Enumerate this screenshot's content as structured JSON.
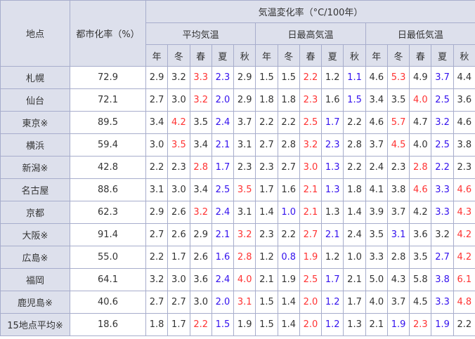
{
  "header": {
    "location": "地点",
    "urbanization": "都市化率（%）",
    "rate_title": "気温変化率（°C/100年）",
    "groups": [
      "平均気温",
      "日最高気温",
      "日最低気温"
    ],
    "seasons": [
      "年",
      "冬",
      "春",
      "夏",
      "秋"
    ]
  },
  "colors": {
    "red": "#ff3333",
    "blue": "#3311ee",
    "header_bg": "#dde0ec",
    "border": "#a7adcc"
  },
  "rows": [
    {
      "name": "札幌",
      "urban": "72.9",
      "values": [
        "2.9",
        "3.2",
        "3.3",
        "2.3",
        "2.9",
        "1.5",
        "1.5",
        "2.2",
        "1.2",
        "1.1",
        "4.6",
        "5.3",
        "4.9",
        "3.7",
        "4.4"
      ],
      "highlight": [
        "",
        "",
        "r",
        "b",
        "",
        "",
        "",
        "r",
        "",
        "b",
        "",
        "r",
        "",
        "b",
        ""
      ]
    },
    {
      "name": "仙台",
      "urban": "72.1",
      "values": [
        "2.7",
        "3.0",
        "3.2",
        "2.0",
        "2.9",
        "1.8",
        "1.8",
        "2.3",
        "1.6",
        "1.5",
        "3.4",
        "3.5",
        "4.0",
        "2.5",
        "3.6"
      ],
      "highlight": [
        "",
        "",
        "r",
        "b",
        "",
        "",
        "",
        "r",
        "",
        "b",
        "",
        "",
        "r",
        "b",
        ""
      ]
    },
    {
      "name": "東京※",
      "urban": "89.5",
      "values": [
        "3.4",
        "4.2",
        "3.5",
        "2.4",
        "3.7",
        "2.2",
        "2.2",
        "2.5",
        "1.7",
        "2.2",
        "4.6",
        "5.7",
        "4.7",
        "3.2",
        "4.6"
      ],
      "highlight": [
        "",
        "r",
        "",
        "b",
        "",
        "",
        "",
        "r",
        "b",
        "",
        "",
        "r",
        "",
        "b",
        ""
      ]
    },
    {
      "name": "横浜",
      "urban": "59.4",
      "values": [
        "3.0",
        "3.5",
        "3.4",
        "2.1",
        "3.1",
        "2.7",
        "2.8",
        "3.2",
        "2.3",
        "2.8",
        "3.7",
        "4.5",
        "4.0",
        "2.5",
        "3.8"
      ],
      "highlight": [
        "",
        "r",
        "",
        "b",
        "",
        "",
        "",
        "r",
        "b",
        "",
        "",
        "r",
        "",
        "b",
        ""
      ]
    },
    {
      "name": "新潟※",
      "urban": "42.8",
      "values": [
        "2.2",
        "2.3",
        "2.8",
        "1.7",
        "2.3",
        "2.3",
        "2.7",
        "3.0",
        "1.3",
        "2.2",
        "2.4",
        "2.3",
        "2.8",
        "2.2",
        "2.3"
      ],
      "highlight": [
        "",
        "",
        "r",
        "b",
        "",
        "",
        "",
        "r",
        "b",
        "",
        "",
        "",
        "r",
        "b",
        ""
      ]
    },
    {
      "name": "名古屋",
      "urban": "88.6",
      "values": [
        "3.1",
        "3.0",
        "3.4",
        "2.5",
        "3.5",
        "1.7",
        "1.6",
        "2.1",
        "1.3",
        "1.8",
        "4.1",
        "3.8",
        "4.6",
        "3.3",
        "4.6"
      ],
      "highlight": [
        "",
        "",
        "",
        "b",
        "r",
        "",
        "",
        "r",
        "b",
        "",
        "",
        "",
        "r",
        "b",
        "r"
      ]
    },
    {
      "name": "京都",
      "urban": "62.3",
      "values": [
        "2.9",
        "2.6",
        "3.2",
        "2.4",
        "3.1",
        "1.4",
        "1.0",
        "2.1",
        "1.3",
        "1.4",
        "3.9",
        "3.7",
        "4.2",
        "3.3",
        "4.3"
      ],
      "highlight": [
        "",
        "",
        "r",
        "b",
        "",
        "",
        "b",
        "r",
        "",
        "",
        "",
        "",
        "",
        "b",
        "r"
      ]
    },
    {
      "name": "大阪※",
      "urban": "91.4",
      "values": [
        "2.7",
        "2.6",
        "2.9",
        "2.1",
        "3.2",
        "2.3",
        "2.2",
        "2.7",
        "2.1",
        "2.4",
        "3.5",
        "3.1",
        "3.6",
        "3.2",
        "4.2"
      ],
      "highlight": [
        "",
        "",
        "",
        "b",
        "r",
        "",
        "",
        "r",
        "b",
        "",
        "",
        "b",
        "",
        "",
        "r"
      ]
    },
    {
      "name": "広島※",
      "urban": "55.0",
      "values": [
        "2.2",
        "1.7",
        "2.6",
        "1.6",
        "2.8",
        "1.2",
        "0.8",
        "1.9",
        "1.2",
        "1.0",
        "3.3",
        "2.8",
        "3.5",
        "2.7",
        "4.2"
      ],
      "highlight": [
        "",
        "",
        "",
        "b",
        "r",
        "",
        "b",
        "r",
        "",
        "",
        "",
        "",
        "",
        "b",
        "r"
      ]
    },
    {
      "name": "福岡",
      "urban": "64.1",
      "values": [
        "3.2",
        "3.0",
        "3.6",
        "2.4",
        "4.0",
        "2.1",
        "1.9",
        "2.5",
        "1.7",
        "2.1",
        "5.0",
        "4.3",
        "5.8",
        "3.8",
        "6.1"
      ],
      "highlight": [
        "",
        "",
        "",
        "b",
        "r",
        "",
        "",
        "r",
        "b",
        "",
        "",
        "",
        "",
        "b",
        "r"
      ]
    },
    {
      "name": "鹿児島※",
      "urban": "40.6",
      "values": [
        "2.7",
        "2.7",
        "3.0",
        "2.0",
        "3.1",
        "1.5",
        "1.4",
        "2.0",
        "1.2",
        "1.7",
        "4.0",
        "3.7",
        "4.5",
        "3.3",
        "4.8"
      ],
      "highlight": [
        "",
        "",
        "",
        "b",
        "r",
        "",
        "",
        "r",
        "b",
        "",
        "",
        "",
        "",
        "b",
        "r"
      ]
    },
    {
      "name": "15地点平均※",
      "urban": "18.6",
      "values": [
        "1.8",
        "1.7",
        "2.2",
        "1.5",
        "1.9",
        "1.5",
        "1.4",
        "2.0",
        "1.2",
        "1.3",
        "2.1",
        "1.9",
        "2.3",
        "1.9",
        "2.2"
      ],
      "highlight": [
        "",
        "",
        "r",
        "b",
        "",
        "",
        "",
        "r",
        "b",
        "",
        "",
        "b",
        "r",
        "b",
        ""
      ]
    }
  ]
}
